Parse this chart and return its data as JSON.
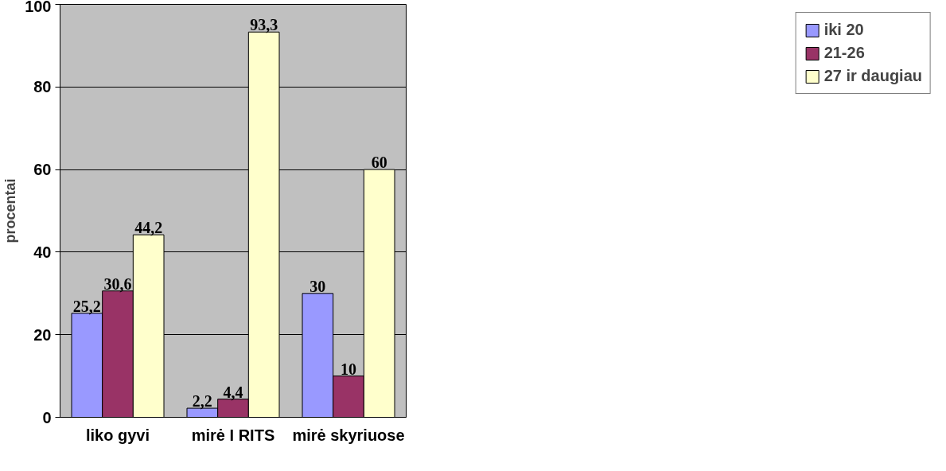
{
  "chart_data": {
    "type": "bar",
    "ylabel": "procentai",
    "categories": [
      "liko gyvi",
      "mirė I RITS",
      "mirė skyriuose"
    ],
    "series": [
      {
        "name": "iki 20",
        "color": "#9999ff",
        "values": [
          25.2,
          2.2,
          30
        ],
        "value_labels": [
          "25,2",
          "2,2",
          "30"
        ]
      },
      {
        "name": "21-26",
        "color": "#993366",
        "values": [
          30.6,
          4.4,
          10
        ],
        "value_labels": [
          "30,6",
          "4,4",
          "10"
        ]
      },
      {
        "name": "27 ir daugiau",
        "color": "#ffffcc",
        "values": [
          44.2,
          93.3,
          60
        ],
        "value_labels": [
          "44,2",
          "93,3",
          "60"
        ]
      }
    ],
    "ylim": [
      0,
      100
    ],
    "yticks": [
      0,
      20,
      40,
      60,
      80,
      100
    ],
    "grid": "y",
    "legend": "right"
  }
}
